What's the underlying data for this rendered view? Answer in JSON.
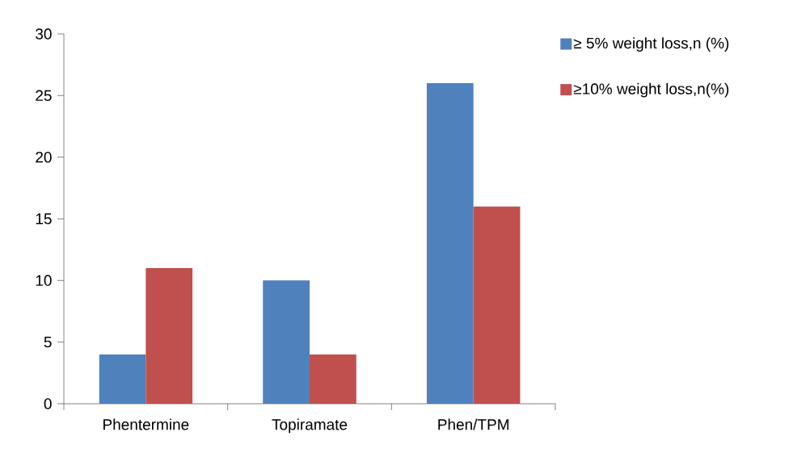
{
  "chart_data": {
    "type": "bar",
    "categories": [
      "Phentermine",
      "Topiramate",
      "Phen/TPM"
    ],
    "series": [
      {
        "name": "≥ 5% weight loss,n (%)",
        "color": "#4f81bd",
        "values": [
          4,
          10,
          26
        ]
      },
      {
        "name": "≥10% weight loss,n(%)",
        "color": "#c0504d",
        "values": [
          11,
          4,
          16
        ]
      }
    ],
    "ylim": [
      0,
      30
    ],
    "yticks": [
      0,
      5,
      10,
      15,
      20,
      25,
      30
    ],
    "grid": false,
    "legend": "top right"
  }
}
